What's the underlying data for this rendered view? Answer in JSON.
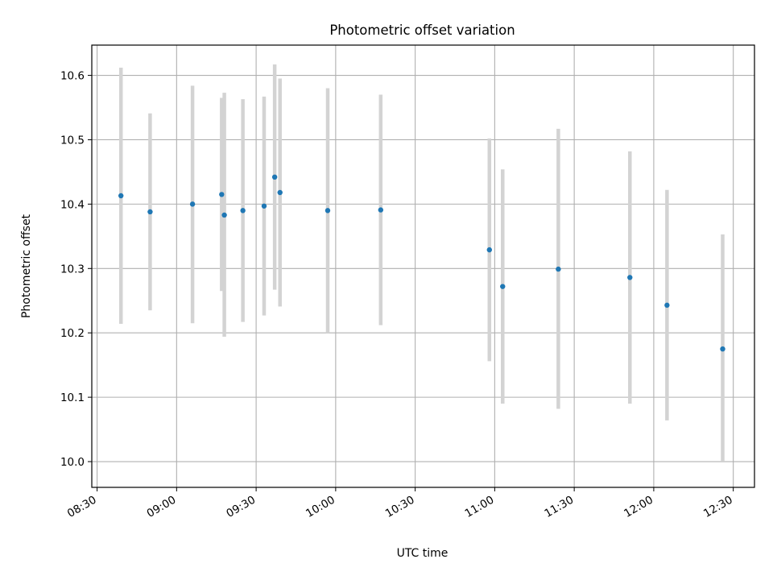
{
  "chart_data": {
    "type": "scatter",
    "title": "Photometric offset variation",
    "xlabel": "UTC time",
    "ylabel": "Photometric offset",
    "xlim": [
      "08:28",
      "12:38"
    ],
    "ylim": [
      9.96,
      10.647
    ],
    "grid": true,
    "xticks": [
      "08:30",
      "09:00",
      "09:30",
      "10:00",
      "10:30",
      "11:00",
      "11:30",
      "12:00",
      "12:30"
    ],
    "yticks": [
      "10.0",
      "10.1",
      "10.2",
      "10.3",
      "10.4",
      "10.5",
      "10.6"
    ],
    "colors": {
      "point": "#1f77b4",
      "errorbar": "#d3d3d3",
      "grid": "#b0b0b0"
    },
    "points": [
      {
        "x": "08:39",
        "y": 10.413,
        "ylow": 10.214,
        "yhigh": 10.612
      },
      {
        "x": "08:50",
        "y": 10.388,
        "ylow": 10.235,
        "yhigh": 10.541
      },
      {
        "x": "09:06",
        "y": 10.4,
        "ylow": 10.215,
        "yhigh": 10.584
      },
      {
        "x": "09:17",
        "y": 10.415,
        "ylow": 10.265,
        "yhigh": 10.565
      },
      {
        "x": "09:18",
        "y": 10.383,
        "ylow": 10.194,
        "yhigh": 10.573
      },
      {
        "x": "09:25",
        "y": 10.39,
        "ylow": 10.217,
        "yhigh": 10.563
      },
      {
        "x": "09:33",
        "y": 10.397,
        "ylow": 10.227,
        "yhigh": 10.567
      },
      {
        "x": "09:37",
        "y": 10.442,
        "ylow": 10.267,
        "yhigh": 10.617
      },
      {
        "x": "09:39",
        "y": 10.418,
        "ylow": 10.241,
        "yhigh": 10.595
      },
      {
        "x": "09:57",
        "y": 10.39,
        "ylow": 10.2,
        "yhigh": 10.58
      },
      {
        "x": "10:17",
        "y": 10.391,
        "ylow": 10.212,
        "yhigh": 10.57
      },
      {
        "x": "10:58",
        "y": 10.329,
        "ylow": 10.156,
        "yhigh": 10.502
      },
      {
        "x": "11:03",
        "y": 10.272,
        "ylow": 10.09,
        "yhigh": 10.454
      },
      {
        "x": "11:24",
        "y": 10.299,
        "ylow": 10.082,
        "yhigh": 10.517
      },
      {
        "x": "11:51",
        "y": 10.286,
        "ylow": 10.09,
        "yhigh": 10.482
      },
      {
        "x": "12:05",
        "y": 10.243,
        "ylow": 10.064,
        "yhigh": 10.422
      },
      {
        "x": "12:26",
        "y": 10.175,
        "ylow": 10.0,
        "yhigh": 10.353
      }
    ]
  }
}
